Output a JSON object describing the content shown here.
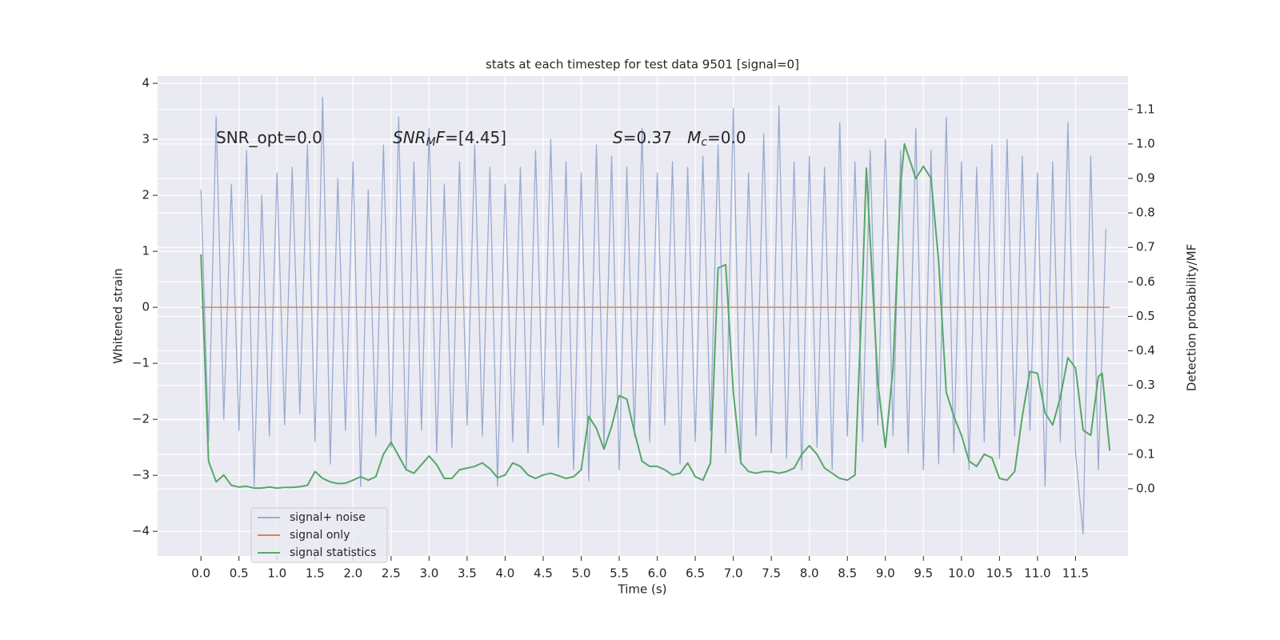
{
  "chart_data": {
    "type": "line",
    "title": "stats at each timestep for test data 9501 [signal=0]",
    "xlabel": "Time (s)",
    "ylabel": "Whitened strain",
    "y2label": "Detection probability/MF",
    "xlim": [
      -0.57,
      12.19
    ],
    "ylim": [
      -4.44,
      4.13
    ],
    "y2lim": [
      -0.195,
      1.197
    ],
    "xticks": [
      {
        "value": 0,
        "label": "0.0"
      },
      0.5,
      {
        "value": 1,
        "label": "1.0"
      },
      1.5,
      {
        "value": 2,
        "label": "2.0"
      },
      2.5,
      {
        "value": 3,
        "label": "3.0"
      },
      3.5,
      {
        "value": 4,
        "label": "4.0"
      },
      4.5,
      {
        "value": 5,
        "label": "5.0"
      },
      5.5,
      {
        "value": 6,
        "label": "6.0"
      },
      6.5,
      {
        "value": 7,
        "label": "7.0"
      },
      7.5,
      {
        "value": 8,
        "label": "8.0"
      },
      8.5,
      {
        "value": 9,
        "label": "9.0"
      },
      9.5,
      {
        "value": 10,
        "label": "10.0"
      },
      10.5,
      {
        "value": 11,
        "label": "11.0"
      },
      11.5
    ],
    "yticks": [
      {
        "value": -4,
        "label": "−4"
      },
      {
        "value": -3,
        "label": "−3"
      },
      {
        "value": -2,
        "label": "−2"
      },
      {
        "value": -1,
        "label": "−1"
      },
      0,
      1,
      2,
      3,
      4
    ],
    "y2ticks": [
      {
        "value": 0,
        "label": "0.0"
      },
      0.1,
      0.2,
      0.3,
      0.4,
      0.5,
      0.6,
      0.7,
      0.8,
      0.9,
      {
        "value": 1,
        "label": "1.0"
      },
      1.1
    ],
    "grid": true,
    "background": "#eaeaf2",
    "legend_loc": "lower left",
    "annotations": [
      [
        {
          "text": "SNR_opt=0.0"
        }
      ],
      [
        {
          "text": "SNR",
          "italic": true
        },
        {
          "text": "M",
          "italic": true,
          "sub": true
        },
        {
          "text": "F",
          "italic": true
        },
        {
          "text": "=[4.45]"
        }
      ],
      [
        {
          "text": "S",
          "italic": true
        },
        {
          "text": "=0.37   "
        },
        {
          "text": "M",
          "italic": true
        },
        {
          "text": "c",
          "italic": true,
          "sub": true
        },
        {
          "text": "=0.0"
        }
      ]
    ],
    "series": [
      {
        "name": "signal+ noise",
        "color": "#9aabd0",
        "axis": "y",
        "x": [
          0,
          0.1,
          0.2,
          0.3,
          0.4,
          0.5,
          0.6,
          0.7,
          0.8,
          0.9,
          1.0,
          1.1,
          1.2,
          1.3,
          1.4,
          1.5,
          1.6,
          1.7,
          1.8,
          1.9,
          2.0,
          2.1,
          2.2,
          2.3,
          2.4,
          2.5,
          2.6,
          2.7,
          2.8,
          2.9,
          3.0,
          3.1,
          3.2,
          3.3,
          3.4,
          3.5,
          3.6,
          3.7,
          3.8,
          3.9,
          4.0,
          4.1,
          4.2,
          4.3,
          4.4,
          4.5,
          4.6,
          4.7,
          4.8,
          4.9,
          5.0,
          5.1,
          5.2,
          5.3,
          5.4,
          5.5,
          5.6,
          5.7,
          5.8,
          5.9,
          6.0,
          6.1,
          6.2,
          6.3,
          6.4,
          6.5,
          6.6,
          6.7,
          6.8,
          6.9,
          7.0,
          7.1,
          7.2,
          7.3,
          7.4,
          7.5,
          7.6,
          7.7,
          7.8,
          7.9,
          8.0,
          8.1,
          8.2,
          8.3,
          8.4,
          8.5,
          8.6,
          8.7,
          8.8,
          8.9,
          9.0,
          9.1,
          9.2,
          9.3,
          9.4,
          9.5,
          9.6,
          9.7,
          9.8,
          9.9,
          10.0,
          10.1,
          10.2,
          10.3,
          10.4,
          10.5,
          10.6,
          10.7,
          10.8,
          10.9,
          11.0,
          11.1,
          11.2,
          11.3,
          11.4,
          11.5,
          11.6,
          11.7,
          11.8,
          11.9
        ],
        "values": [
          2.1,
          -2.4,
          3.4,
          -2.0,
          2.2,
          -2.2,
          2.8,
          -3.2,
          2.0,
          -2.3,
          2.4,
          -2.1,
          2.5,
          -1.9,
          2.9,
          -2.4,
          3.75,
          -2.8,
          2.3,
          -2.2,
          2.6,
          -3.2,
          2.1,
          -2.3,
          2.9,
          -2.5,
          3.4,
          -2.9,
          2.6,
          -2.2,
          3.2,
          -2.6,
          2.2,
          -2.5,
          2.6,
          -2.1,
          2.9,
          -2.3,
          2.5,
          -3.2,
          2.2,
          -2.4,
          2.5,
          -2.6,
          2.8,
          -2.1,
          3.0,
          -2.5,
          2.6,
          -2.9,
          2.4,
          -3.1,
          2.9,
          -2.5,
          2.7,
          -2.9,
          2.5,
          -2.3,
          3.2,
          -2.4,
          2.4,
          -2.1,
          2.6,
          -2.8,
          2.5,
          -2.4,
          2.7,
          -2.2,
          2.9,
          -2.6,
          3.55,
          -2.8,
          2.4,
          -2.3,
          3.1,
          -2.6,
          3.6,
          -2.7,
          2.6,
          -2.9,
          2.7,
          -2.5,
          2.5,
          -2.9,
          3.3,
          -2.3,
          2.6,
          -2.4,
          2.8,
          -2.1,
          3.0,
          -2.3,
          2.8,
          -2.6,
          3.2,
          -2.9,
          2.8,
          -2.8,
          3.4,
          -2.6,
          2.6,
          -2.9,
          2.5,
          -2.4,
          2.9,
          -2.7,
          3.0,
          -2.3,
          2.7,
          -2.2,
          2.4,
          -3.2,
          2.6,
          -2.4,
          3.3,
          -2.6,
          -4.05,
          2.7,
          -2.9,
          1.4
        ]
      },
      {
        "name": "signal only",
        "color": "#dd8452",
        "axis": "y",
        "x": [
          0,
          11.95
        ],
        "values": [
          0,
          0
        ]
      },
      {
        "name": "signal statistics",
        "color": "#55a868",
        "axis": "y2",
        "x": [
          0,
          0.1,
          0.2,
          0.3,
          0.4,
          0.5,
          0.6,
          0.7,
          0.8,
          0.9,
          1.0,
          1.1,
          1.2,
          1.3,
          1.4,
          1.5,
          1.6,
          1.7,
          1.8,
          1.9,
          2.0,
          2.1,
          2.2,
          2.3,
          2.4,
          2.5,
          2.6,
          2.7,
          2.8,
          2.9,
          3.0,
          3.1,
          3.2,
          3.3,
          3.4,
          3.5,
          3.6,
          3.7,
          3.8,
          3.9,
          4.0,
          4.1,
          4.2,
          4.3,
          4.4,
          4.5,
          4.6,
          4.7,
          4.8,
          4.9,
          5.0,
          5.1,
          5.2,
          5.3,
          5.4,
          5.5,
          5.6,
          5.7,
          5.8,
          5.9,
          6.0,
          6.1,
          6.2,
          6.3,
          6.4,
          6.5,
          6.6,
          6.7,
          6.8,
          6.9,
          7.0,
          7.1,
          7.2,
          7.3,
          7.4,
          7.5,
          7.6,
          7.7,
          7.8,
          7.9,
          8.0,
          8.1,
          8.2,
          8.3,
          8.4,
          8.5,
          8.6,
          8.7,
          8.75,
          8.9,
          9.0,
          9.1,
          9.2,
          9.25,
          9.4,
          9.5,
          9.6,
          9.7,
          9.8,
          9.9,
          10.0,
          10.1,
          10.2,
          10.3,
          10.4,
          10.5,
          10.6,
          10.7,
          10.8,
          10.9,
          11.0,
          11.1,
          11.2,
          11.3,
          11.4,
          11.5,
          11.6,
          11.7,
          11.8,
          11.85,
          11.95
        ],
        "values": [
          0.68,
          0.08,
          0.02,
          0.04,
          0.01,
          0.005,
          0.007,
          0.002,
          0.002,
          0.005,
          0.002,
          0.004,
          0.004,
          0.006,
          0.01,
          0.05,
          0.03,
          0.02,
          0.015,
          0.016,
          0.025,
          0.035,
          0.025,
          0.035,
          0.1,
          0.135,
          0.095,
          0.055,
          0.045,
          0.07,
          0.095,
          0.07,
          0.03,
          0.03,
          0.055,
          0.06,
          0.065,
          0.075,
          0.058,
          0.032,
          0.04,
          0.075,
          0.065,
          0.04,
          0.03,
          0.04,
          0.045,
          0.038,
          0.03,
          0.035,
          0.055,
          0.21,
          0.175,
          0.115,
          0.18,
          0.27,
          0.26,
          0.165,
          0.08,
          0.065,
          0.065,
          0.055,
          0.04,
          0.045,
          0.075,
          0.035,
          0.025,
          0.075,
          0.64,
          0.65,
          0.28,
          0.075,
          0.05,
          0.045,
          0.05,
          0.05,
          0.045,
          0.05,
          0.06,
          0.1,
          0.125,
          0.1,
          0.06,
          0.045,
          0.03,
          0.025,
          0.04,
          0.6,
          0.93,
          0.31,
          0.12,
          0.35,
          0.88,
          1.0,
          0.9,
          0.935,
          0.9,
          0.66,
          0.28,
          0.21,
          0.155,
          0.08,
          0.065,
          0.1,
          0.09,
          0.03,
          0.025,
          0.05,
          0.21,
          0.34,
          0.335,
          0.22,
          0.185,
          0.265,
          0.38,
          0.35,
          0.17,
          0.155,
          0.325,
          0.335,
          0.11
        ]
      }
    ]
  }
}
